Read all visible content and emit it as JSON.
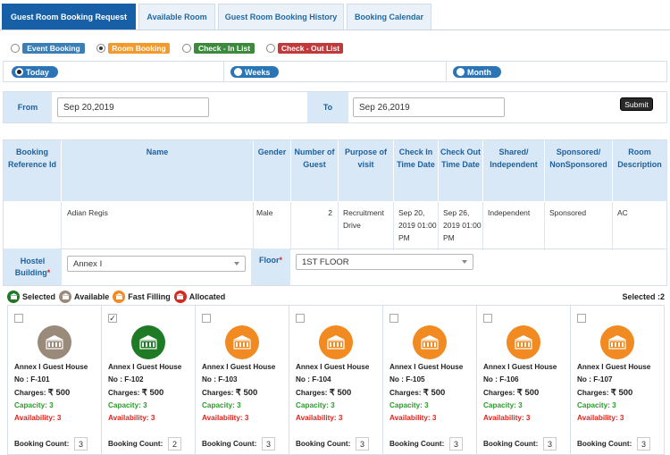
{
  "tabs": [
    {
      "label": "Guest Room Booking Request",
      "active": true
    },
    {
      "label": "Available Room",
      "active": false
    },
    {
      "label": "Guest Room Booking History",
      "active": false
    },
    {
      "label": "Booking Calendar",
      "active": false
    }
  ],
  "booking_types": [
    {
      "label": "Event Booking",
      "color": "#3a7fb8",
      "selected": false
    },
    {
      "label": "Room Booking",
      "color": "#f39a2a",
      "selected": true
    },
    {
      "label": "Check - In List",
      "color": "#3c8a3c",
      "selected": false
    },
    {
      "label": "Check - Out List",
      "color": "#c0393b",
      "selected": false
    }
  ],
  "periods": [
    {
      "label": "Today",
      "selected": true
    },
    {
      "label": "Weeks",
      "selected": false
    },
    {
      "label": "Month",
      "selected": false
    }
  ],
  "date_filter": {
    "from_label": "From",
    "from_value": "Sep 20,2019",
    "to_label": "To",
    "to_value": "Sep 26,2019",
    "submit_label": "Submit"
  },
  "table": {
    "headers": [
      "Booking Reference Id",
      "Name",
      "Gender",
      "Number of Guest",
      "Purpose of visit",
      "Check In Time Date",
      "Check Out Time Date",
      "Shared/ Independent",
      "Sponsored/ NonSponsored",
      "Room Description"
    ],
    "row": {
      "ref": "",
      "name": "Adian Regis",
      "gender": "Male",
      "guests": "2",
      "purpose": "Recruitment Drive",
      "checkin": "Sep 20, 2019 01:00 PM",
      "checkout": "Sep 26, 2019 01:00 PM",
      "shared": "Independent",
      "sponsored": "Sponsored",
      "description": "AC"
    }
  },
  "hostel": {
    "building_label": "Hostel Building",
    "required_mark": "*",
    "building_value": "Annex I",
    "floor_label": "Floor",
    "floor_value": "1ST FLOOR"
  },
  "legend": [
    {
      "label": "Selected",
      "color": "#1f7a25"
    },
    {
      "label": "Available",
      "color": "#9a8a7a"
    },
    {
      "label": "Fast Filling",
      "color": "#f28a22"
    },
    {
      "label": "Allocated",
      "color": "#d42b1f"
    }
  ],
  "selected_count": "Selected :2",
  "rooms": [
    {
      "house": "Annex I Guest House",
      "no": "No : F-101",
      "charges_label": "Charges:",
      "charges": "₹ 500",
      "capacity": "Capacity: 3",
      "availability": "Availability: 3",
      "count_label": "Booking Count:",
      "count": "3",
      "status_color": "#9a8a7a",
      "checked": false
    },
    {
      "house": "Annex I Guest House",
      "no": "No : F-102",
      "charges_label": "Charges:",
      "charges": "₹ 500",
      "capacity": "Capacity: 3",
      "availability": "Availability: 3",
      "count_label": "Booking Count:",
      "count": "2",
      "status_color": "#1f7a25",
      "checked": true
    },
    {
      "house": "Annex I Guest House",
      "no": "No : F-103",
      "charges_label": "Charges:",
      "charges": "₹ 500",
      "capacity": "Capacity: 3",
      "availability": "Availability: 3",
      "count_label": "Booking Count:",
      "count": "3",
      "status_color": "#f28a22",
      "checked": false
    },
    {
      "house": "Annex I Guest House",
      "no": "No : F-104",
      "charges_label": "Charges:",
      "charges": "₹ 500",
      "capacity": "Capacity: 3",
      "availability": "Availability: 3",
      "count_label": "Booking Count:",
      "count": "3",
      "status_color": "#f28a22",
      "checked": false
    },
    {
      "house": "Annex I Guest House",
      "no": "No : F-105",
      "charges_label": "Charges:",
      "charges": "₹ 500",
      "capacity": "Capacity: 3",
      "availability": "Availability: 3",
      "count_label": "Booking Count:",
      "count": "3",
      "status_color": "#f28a22",
      "checked": false
    },
    {
      "house": "Annex I Guest House",
      "no": "No : F-106",
      "charges_label": "Charges:",
      "charges": "₹ 500",
      "capacity": "Capacity: 3",
      "availability": "Availability: 3",
      "count_label": "Booking Count:",
      "count": "3",
      "status_color": "#f28a22",
      "checked": false
    },
    {
      "house": "Annex I Guest House",
      "no": "No : F-107",
      "charges_label": "Charges:",
      "charges": "₹ 500",
      "capacity": "Capacity: 3",
      "availability": "Availability: 3",
      "count_label": "Booking Count:",
      "count": "3",
      "status_color": "#f28a22",
      "checked": false
    }
  ]
}
